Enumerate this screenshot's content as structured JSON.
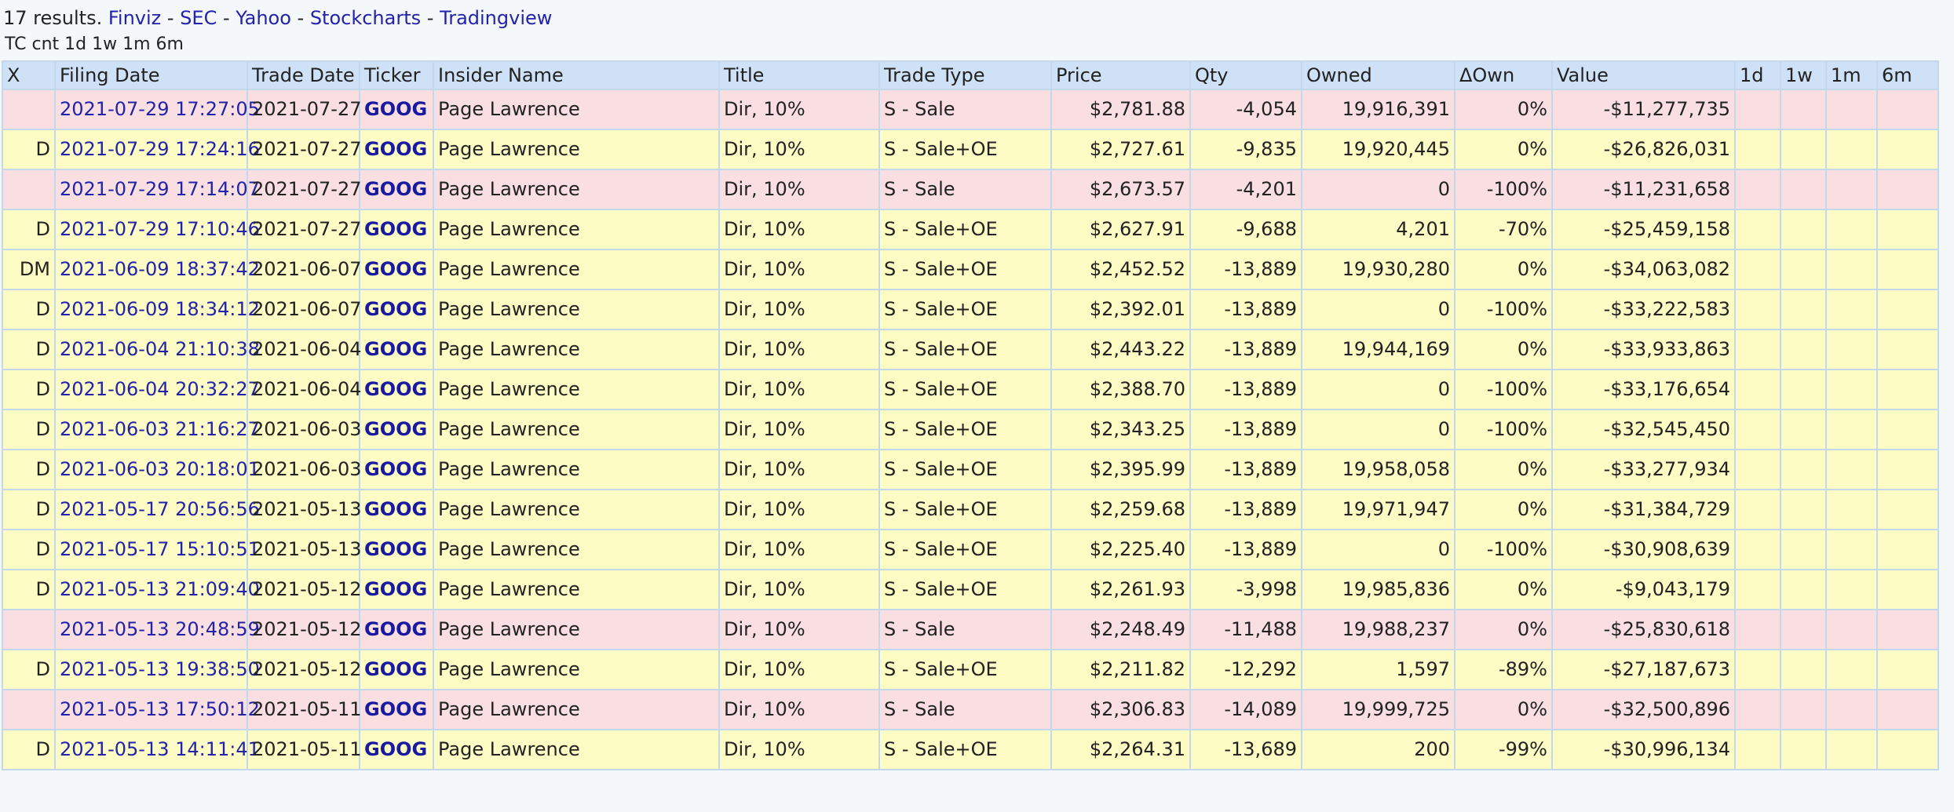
{
  "header": {
    "results_text": "17 results.",
    "links": [
      "Finviz",
      "SEC",
      "Yahoo",
      "Stockcharts",
      "Tradingview"
    ],
    "separator": " - ",
    "subline": "TC cnt 1d 1w 1m 6m"
  },
  "columns": [
    "X",
    "Filing Date",
    "Trade Date",
    "Ticker",
    "Insider Name",
    "Title",
    "Trade Type",
    "Price",
    "Qty",
    "Owned",
    "ΔOwn",
    "Value",
    "1d",
    "1w",
    "1m",
    "6m"
  ],
  "rows": [
    {
      "x": "",
      "filing_date": "2021-07-29 17:27:05",
      "trade_date": "2021-07-27",
      "ticker": "GOOG",
      "insider": "Page Lawrence",
      "title": "Dir, 10%",
      "trade_type": "S - Sale",
      "price": "$2,781.88",
      "qty": "-4,054",
      "owned": "19,916,391",
      "d_own": "0%",
      "value": "-$11,277,735",
      "d1": "",
      "w1": "",
      "m1": "",
      "m6": ""
    },
    {
      "x": "D",
      "filing_date": "2021-07-29 17:24:16",
      "trade_date": "2021-07-27",
      "ticker": "GOOG",
      "insider": "Page Lawrence",
      "title": "Dir, 10%",
      "trade_type": "S - Sale+OE",
      "price": "$2,727.61",
      "qty": "-9,835",
      "owned": "19,920,445",
      "d_own": "0%",
      "value": "-$26,826,031",
      "d1": "",
      "w1": "",
      "m1": "",
      "m6": ""
    },
    {
      "x": "",
      "filing_date": "2021-07-29 17:14:07",
      "trade_date": "2021-07-27",
      "ticker": "GOOG",
      "insider": "Page Lawrence",
      "title": "Dir, 10%",
      "trade_type": "S - Sale",
      "price": "$2,673.57",
      "qty": "-4,201",
      "owned": "0",
      "d_own": "-100%",
      "value": "-$11,231,658",
      "d1": "",
      "w1": "",
      "m1": "",
      "m6": ""
    },
    {
      "x": "D",
      "filing_date": "2021-07-29 17:10:46",
      "trade_date": "2021-07-27",
      "ticker": "GOOG",
      "insider": "Page Lawrence",
      "title": "Dir, 10%",
      "trade_type": "S - Sale+OE",
      "price": "$2,627.91",
      "qty": "-9,688",
      "owned": "4,201",
      "d_own": "-70%",
      "value": "-$25,459,158",
      "d1": "",
      "w1": "",
      "m1": "",
      "m6": ""
    },
    {
      "x": "DM",
      "filing_date": "2021-06-09 18:37:42",
      "trade_date": "2021-06-07",
      "ticker": "GOOG",
      "insider": "Page Lawrence",
      "title": "Dir, 10%",
      "trade_type": "S - Sale+OE",
      "price": "$2,452.52",
      "qty": "-13,889",
      "owned": "19,930,280",
      "d_own": "0%",
      "value": "-$34,063,082",
      "d1": "",
      "w1": "",
      "m1": "",
      "m6": ""
    },
    {
      "x": "D",
      "filing_date": "2021-06-09 18:34:12",
      "trade_date": "2021-06-07",
      "ticker": "GOOG",
      "insider": "Page Lawrence",
      "title": "Dir, 10%",
      "trade_type": "S - Sale+OE",
      "price": "$2,392.01",
      "qty": "-13,889",
      "owned": "0",
      "d_own": "-100%",
      "value": "-$33,222,583",
      "d1": "",
      "w1": "",
      "m1": "",
      "m6": ""
    },
    {
      "x": "D",
      "filing_date": "2021-06-04 21:10:38",
      "trade_date": "2021-06-04",
      "ticker": "GOOG",
      "insider": "Page Lawrence",
      "title": "Dir, 10%",
      "trade_type": "S - Sale+OE",
      "price": "$2,443.22",
      "qty": "-13,889",
      "owned": "19,944,169",
      "d_own": "0%",
      "value": "-$33,933,863",
      "d1": "",
      "w1": "",
      "m1": "",
      "m6": ""
    },
    {
      "x": "D",
      "filing_date": "2021-06-04 20:32:27",
      "trade_date": "2021-06-04",
      "ticker": "GOOG",
      "insider": "Page Lawrence",
      "title": "Dir, 10%",
      "trade_type": "S - Sale+OE",
      "price": "$2,388.70",
      "qty": "-13,889",
      "owned": "0",
      "d_own": "-100%",
      "value": "-$33,176,654",
      "d1": "",
      "w1": "",
      "m1": "",
      "m6": ""
    },
    {
      "x": "D",
      "filing_date": "2021-06-03 21:16:27",
      "trade_date": "2021-06-03",
      "ticker": "GOOG",
      "insider": "Page Lawrence",
      "title": "Dir, 10%",
      "trade_type": "S - Sale+OE",
      "price": "$2,343.25",
      "qty": "-13,889",
      "owned": "0",
      "d_own": "-100%",
      "value": "-$32,545,450",
      "d1": "",
      "w1": "",
      "m1": "",
      "m6": ""
    },
    {
      "x": "D",
      "filing_date": "2021-06-03 20:18:01",
      "trade_date": "2021-06-03",
      "ticker": "GOOG",
      "insider": "Page Lawrence",
      "title": "Dir, 10%",
      "trade_type": "S - Sale+OE",
      "price": "$2,395.99",
      "qty": "-13,889",
      "owned": "19,958,058",
      "d_own": "0%",
      "value": "-$33,277,934",
      "d1": "",
      "w1": "",
      "m1": "",
      "m6": ""
    },
    {
      "x": "D",
      "filing_date": "2021-05-17 20:56:56",
      "trade_date": "2021-05-13",
      "ticker": "GOOG",
      "insider": "Page Lawrence",
      "title": "Dir, 10%",
      "trade_type": "S - Sale+OE",
      "price": "$2,259.68",
      "qty": "-13,889",
      "owned": "19,971,947",
      "d_own": "0%",
      "value": "-$31,384,729",
      "d1": "",
      "w1": "",
      "m1": "",
      "m6": ""
    },
    {
      "x": "D",
      "filing_date": "2021-05-17 15:10:51",
      "trade_date": "2021-05-13",
      "ticker": "GOOG",
      "insider": "Page Lawrence",
      "title": "Dir, 10%",
      "trade_type": "S - Sale+OE",
      "price": "$2,225.40",
      "qty": "-13,889",
      "owned": "0",
      "d_own": "-100%",
      "value": "-$30,908,639",
      "d1": "",
      "w1": "",
      "m1": "",
      "m6": ""
    },
    {
      "x": "D",
      "filing_date": "2021-05-13 21:09:40",
      "trade_date": "2021-05-12",
      "ticker": "GOOG",
      "insider": "Page Lawrence",
      "title": "Dir, 10%",
      "trade_type": "S - Sale+OE",
      "price": "$2,261.93",
      "qty": "-3,998",
      "owned": "19,985,836",
      "d_own": "0%",
      "value": "-$9,043,179",
      "d1": "",
      "w1": "",
      "m1": "",
      "m6": ""
    },
    {
      "x": "",
      "filing_date": "2021-05-13 20:48:59",
      "trade_date": "2021-05-12",
      "ticker": "GOOG",
      "insider": "Page Lawrence",
      "title": "Dir, 10%",
      "trade_type": "S - Sale",
      "price": "$2,248.49",
      "qty": "-11,488",
      "owned": "19,988,237",
      "d_own": "0%",
      "value": "-$25,830,618",
      "d1": "",
      "w1": "",
      "m1": "",
      "m6": ""
    },
    {
      "x": "D",
      "filing_date": "2021-05-13 19:38:50",
      "trade_date": "2021-05-12",
      "ticker": "GOOG",
      "insider": "Page Lawrence",
      "title": "Dir, 10%",
      "trade_type": "S - Sale+OE",
      "price": "$2,211.82",
      "qty": "-12,292",
      "owned": "1,597",
      "d_own": "-89%",
      "value": "-$27,187,673",
      "d1": "",
      "w1": "",
      "m1": "",
      "m6": ""
    },
    {
      "x": "",
      "filing_date": "2021-05-13 17:50:12",
      "trade_date": "2021-05-11",
      "ticker": "GOOG",
      "insider": "Page Lawrence",
      "title": "Dir, 10%",
      "trade_type": "S - Sale",
      "price": "$2,306.83",
      "qty": "-14,089",
      "owned": "19,999,725",
      "d_own": "0%",
      "value": "-$32,500,896",
      "d1": "",
      "w1": "",
      "m1": "",
      "m6": ""
    },
    {
      "x": "D",
      "filing_date": "2021-05-13 14:11:41",
      "trade_date": "2021-05-11",
      "ticker": "GOOG",
      "insider": "Page Lawrence",
      "title": "Dir, 10%",
      "trade_type": "S - Sale+OE",
      "price": "$2,264.31",
      "qty": "-13,689",
      "owned": "200",
      "d_own": "-99%",
      "value": "-$30,996,134",
      "d1": "",
      "w1": "",
      "m1": "",
      "m6": ""
    }
  ],
  "colors": {
    "sale_row": "#f9dfe2",
    "sale_oe_row": "#fdfcc5",
    "header_bg": "#cfe1f7",
    "link": "#2222aa"
  }
}
